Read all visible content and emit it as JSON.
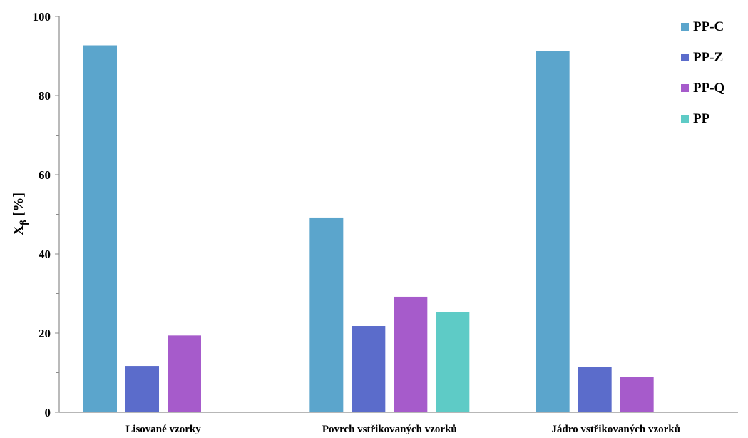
{
  "chart_data": {
    "type": "bar",
    "title": "",
    "xlabel": "",
    "ylabel": "X",
    "ylabel_subscript": "β",
    "ylabel_unit": " [%]",
    "ylim": [
      0,
      100
    ],
    "yticks": [
      0,
      20,
      40,
      60,
      80,
      100
    ],
    "grid": false,
    "legend_position": "top-right",
    "categories": [
      "Lisované vzorky",
      "Povrch vstřikovaných vzorků",
      "Jádro vstřikovaných vzorků"
    ],
    "series": [
      {
        "name": "PP-C",
        "color": "#5ba5cc",
        "values": [
          92.7,
          49.2,
          91.3
        ]
      },
      {
        "name": "PP-Z",
        "color": "#5b6ccb",
        "values": [
          11.7,
          21.8,
          11.5
        ]
      },
      {
        "name": "PP-Q",
        "color": "#a65bcb",
        "values": [
          19.4,
          29.2,
          8.9
        ]
      },
      {
        "name": "PP",
        "color": "#5ecbc6",
        "values": [
          null,
          25.4,
          null
        ]
      }
    ]
  }
}
